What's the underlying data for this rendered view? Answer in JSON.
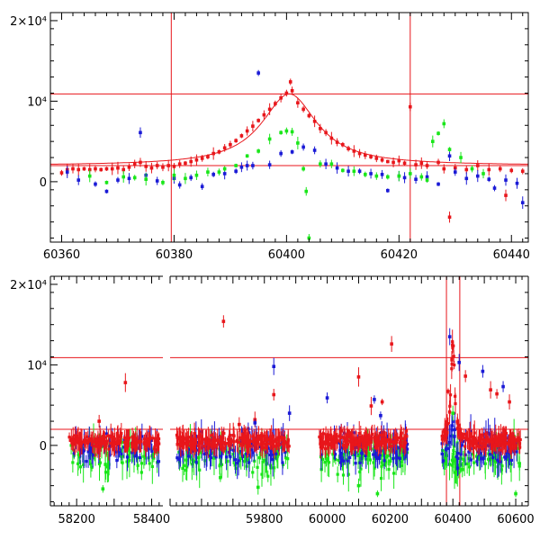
{
  "chart_data": [
    {
      "type": "scatter",
      "panel": "top",
      "title": "",
      "xlabel": "",
      "ylabel": "",
      "xlim": [
        60358,
        60443
      ],
      "ylim": [
        -7500,
        21000
      ],
      "xticks": [
        60360,
        60380,
        60400,
        60420,
        60440
      ],
      "xtick_labels": [
        "60360",
        "60380",
        "60400",
        "60420",
        "60440"
      ],
      "yticks": [
        0,
        10000,
        20000
      ],
      "ytick_labels": [
        "0",
        "10⁴",
        "2×10⁴"
      ],
      "hlines": [
        10900,
        2000
      ],
      "vlines": [
        60379.5,
        60422
      ],
      "colors": {
        "red": "#e8161b",
        "blue": "#1a1ad6",
        "green": "#19e619"
      },
      "model_curve": {
        "peak_x": 60400.5,
        "peak_y": 10900,
        "baseline": 2000,
        "width": 6
      },
      "series": [
        {
          "color": "red",
          "points": [
            [
              60360,
              1100
            ],
            [
              60361,
              1500
            ],
            [
              60362,
              1600
            ],
            [
              60363,
              1500
            ],
            [
              60364,
              1600
            ],
            [
              60365,
              1500
            ],
            [
              60366,
              1600
            ],
            [
              60367,
              1500
            ],
            [
              60368,
              1600
            ],
            [
              60369,
              1600
            ],
            [
              60370,
              1700
            ],
            [
              60371,
              1500
            ],
            [
              60372,
              1800
            ],
            [
              60373,
              2200
            ],
            [
              60374,
              2400
            ],
            [
              60375,
              1900
            ],
            [
              60376,
              1700
            ],
            [
              60377,
              2000
            ],
            [
              60378,
              1800
            ],
            [
              60379,
              2000
            ],
            [
              60380,
              1900
            ],
            [
              60381,
              2200
            ],
            [
              60382,
              2300
            ],
            [
              60383,
              2500
            ],
            [
              60384,
              2700
            ],
            [
              60385,
              2900
            ],
            [
              60386,
              3100
            ],
            [
              60387,
              3500
            ],
            [
              60388,
              3700
            ],
            [
              60389,
              4200
            ],
            [
              60390,
              4600
            ],
            [
              60391,
              5100
            ],
            [
              60392,
              5700
            ],
            [
              60393,
              6300
            ],
            [
              60394,
              6900
            ],
            [
              60395,
              7600
            ],
            [
              60396,
              8300
            ],
            [
              60397,
              9000
            ],
            [
              60398,
              9700
            ],
            [
              60399,
              10400
            ],
            [
              60400,
              11000
            ],
            [
              60400.7,
              12400
            ],
            [
              60401,
              11300
            ],
            [
              60402,
              9800
            ],
            [
              60403,
              9000
            ],
            [
              60404,
              8200
            ],
            [
              60405,
              7500
            ],
            [
              60406,
              6600
            ],
            [
              60407,
              6100
            ],
            [
              60408,
              5400
            ],
            [
              60409,
              4900
            ],
            [
              60410,
              4600
            ],
            [
              60411,
              4100
            ],
            [
              60412,
              3800
            ],
            [
              60413,
              3500
            ],
            [
              60414,
              3300
            ],
            [
              60415,
              3100
            ],
            [
              60416,
              2900
            ],
            [
              60417,
              2700
            ],
            [
              60418,
              2500
            ],
            [
              60419,
              2400
            ],
            [
              60420,
              2600
            ],
            [
              60421,
              2300
            ],
            [
              60422,
              9300
            ],
            [
              60423,
              2100
            ],
            [
              60424,
              2300
            ],
            [
              60425,
              2000
            ],
            [
              60427,
              2400
            ],
            [
              60428,
              1600
            ],
            [
              60429,
              -4400
            ],
            [
              60430,
              1700
            ],
            [
              60432,
              1500
            ],
            [
              60434,
              2000
            ],
            [
              60436,
              1500
            ],
            [
              60438,
              1600
            ],
            [
              60439,
              -1700
            ],
            [
              60440,
              1400
            ],
            [
              60442,
              1300
            ]
          ]
        },
        {
          "color": "blue",
          "points": [
            [
              60361,
              1200
            ],
            [
              60363,
              200
            ],
            [
              60366,
              -300
            ],
            [
              60368,
              -1200
            ],
            [
              60370,
              200
            ],
            [
              60372,
              400
            ],
            [
              60374,
              6100
            ],
            [
              60375,
              800
            ],
            [
              60377,
              100
            ],
            [
              60380,
              400
            ],
            [
              60381,
              -400
            ],
            [
              60383,
              500
            ],
            [
              60385,
              -600
            ],
            [
              60387,
              900
            ],
            [
              60389,
              1000
            ],
            [
              60391,
              1300
            ],
            [
              60392,
              1800
            ],
            [
              60393,
              2000
            ],
            [
              60394,
              2000
            ],
            [
              60395,
              13500
            ],
            [
              60397,
              2100
            ],
            [
              60399,
              3500
            ],
            [
              60401,
              3700
            ],
            [
              60403,
              4300
            ],
            [
              60405,
              3900
            ],
            [
              60407,
              2200
            ],
            [
              60409,
              1700
            ],
            [
              60411,
              1300
            ],
            [
              60413,
              1300
            ],
            [
              60415,
              1000
            ],
            [
              60417,
              900
            ],
            [
              60418,
              -1100
            ],
            [
              60420,
              700
            ],
            [
              60421,
              500
            ],
            [
              60423,
              300
            ],
            [
              60425,
              600
            ],
            [
              60427,
              -300
            ],
            [
              60429,
              3200
            ],
            [
              60430,
              1200
            ],
            [
              60432,
              400
            ],
            [
              60434,
              700
            ],
            [
              60436,
              300
            ],
            [
              60437,
              -800
            ],
            [
              60439,
              200
            ],
            [
              60441,
              -200
            ],
            [
              60442,
              -2600
            ]
          ]
        },
        {
          "color": "green",
          "points": [
            [
              60365,
              700
            ],
            [
              60368,
              -100
            ],
            [
              60371,
              600
            ],
            [
              60373,
              500
            ],
            [
              60375,
              300
            ],
            [
              60378,
              -100
            ],
            [
              60380,
              800
            ],
            [
              60382,
              400
            ],
            [
              60384,
              800
            ],
            [
              60386,
              1200
            ],
            [
              60388,
              1200
            ],
            [
              60389,
              1600
            ],
            [
              60391,
              2000
            ],
            [
              60393,
              3200
            ],
            [
              60395,
              3800
            ],
            [
              60397,
              5300
            ],
            [
              60399,
              6100
            ],
            [
              60400,
              6300
            ],
            [
              60401,
              6200
            ],
            [
              60402,
              4800
            ],
            [
              60403,
              1600
            ],
            [
              60403.5,
              -1200
            ],
            [
              60404,
              -7000
            ],
            [
              60406,
              2200
            ],
            [
              60408,
              2200
            ],
            [
              60410,
              1400
            ],
            [
              60412,
              1300
            ],
            [
              60414,
              900
            ],
            [
              60416,
              700
            ],
            [
              60418,
              600
            ],
            [
              60420,
              700
            ],
            [
              60422,
              1000
            ],
            [
              60424,
              600
            ],
            [
              60425,
              200
            ],
            [
              60426,
              5000
            ],
            [
              60427,
              6000
            ],
            [
              60428,
              7200
            ],
            [
              60429,
              4000
            ],
            [
              60431,
              3000
            ],
            [
              60433,
              1600
            ],
            [
              60435,
              1000
            ]
          ]
        }
      ]
    },
    {
      "type": "scatter",
      "panel": "bottom",
      "title": "",
      "xlabel": "",
      "ylabel": "",
      "axis_break": true,
      "xlim_left": [
        58130,
        58430
      ],
      "xlim_right": [
        59500,
        60640
      ],
      "ylim": [
        -7500,
        21000
      ],
      "xticks": [
        58200,
        58400,
        59800,
        60000,
        60200,
        60400,
        60600
      ],
      "xtick_labels": [
        "58200",
        "58400",
        "59800",
        "60000",
        "60200",
        "60400",
        "60600"
      ],
      "yticks": [
        0,
        10000,
        20000
      ],
      "ytick_labels": [
        "0",
        "10⁴",
        "2×10⁴"
      ],
      "hlines": [
        10900,
        2000
      ],
      "vlines": [
        60379.5,
        60422
      ],
      "clusters": [
        {
          "x_range": [
            58180,
            58420
          ],
          "n": 110
        },
        {
          "x_range": [
            59520,
            59880
          ],
          "n": 150
        },
        {
          "x_range": [
            59975,
            60255
          ],
          "n": 140
        },
        {
          "x_range": [
            60365,
            60615
          ],
          "n": 130
        }
      ],
      "flare": {
        "peak_x": 60400,
        "peak_y": 12000
      },
      "outliers": [
        {
          "color": "red",
          "points": [
            [
              58330,
              7800
            ],
            [
              58260,
              3000
            ],
            [
              59670,
              15400
            ],
            [
              59720,
              2600
            ],
            [
              59770,
              3200
            ],
            [
              59830,
              6300
            ],
            [
              60045,
              1800
            ],
            [
              60100,
              8500
            ],
            [
              60140,
              4900
            ],
            [
              60175,
              5400
            ],
            [
              60205,
              12600
            ],
            [
              60385,
              6700
            ],
            [
              60440,
              8600
            ],
            [
              60520,
              6900
            ],
            [
              60540,
              6400
            ],
            [
              60580,
              5400
            ]
          ]
        },
        {
          "color": "blue",
          "points": [
            [
              59830,
              9800
            ],
            [
              59880,
              4000
            ],
            [
              59770,
              2800
            ],
            [
              60000,
              5900
            ],
            [
              60150,
              5700
            ],
            [
              60170,
              3700
            ],
            [
              60390,
              13500
            ],
            [
              60420,
              10300
            ],
            [
              60495,
              9200
            ],
            [
              60560,
              7300
            ]
          ]
        },
        {
          "color": "green",
          "points": [
            [
              59780,
              -5200
            ],
            [
              60100,
              -5000
            ],
            [
              60160,
              -6000
            ],
            [
              60400,
              4000
            ],
            [
              60430,
              -3000
            ],
            [
              60600,
              -6000
            ],
            [
              58270,
              -5400
            ],
            [
              59660,
              -4000
            ]
          ]
        }
      ]
    }
  ]
}
